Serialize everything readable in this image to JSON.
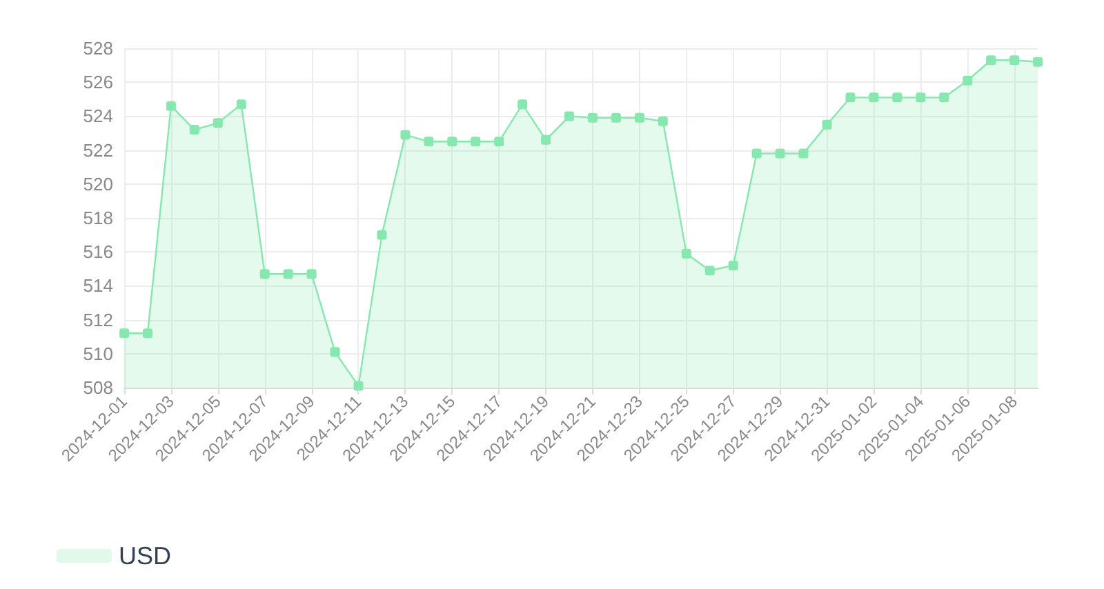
{
  "chart_data": {
    "type": "area",
    "categories": [
      "2024-12-01",
      null,
      "2024-12-03",
      null,
      "2024-12-05",
      null,
      "2024-12-07",
      null,
      "2024-12-09",
      null,
      "2024-12-11",
      null,
      "2024-12-13",
      null,
      "2024-12-15",
      null,
      "2024-12-17",
      null,
      "2024-12-19",
      null,
      "2024-12-21",
      null,
      "2024-12-23",
      null,
      "2024-12-25",
      null,
      "2024-12-27",
      null,
      "2024-12-29",
      null,
      "2024-12-31",
      null,
      "2025-01-02",
      null,
      "2025-01-04",
      null,
      "2025-01-06",
      null,
      "2025-01-08",
      null
    ],
    "series": [
      {
        "name": "USD",
        "color": "#86e8ae",
        "values": [
          511.2,
          511.2,
          524.6,
          523.2,
          523.6,
          524.7,
          514.7,
          514.7,
          514.7,
          510.1,
          508.1,
          517.0,
          522.9,
          522.5,
          522.5,
          522.5,
          522.5,
          524.7,
          522.6,
          524.0,
          523.9,
          523.9,
          523.9,
          523.7,
          515.9,
          514.9,
          515.2,
          521.8,
          521.8,
          521.8,
          523.5,
          525.1,
          525.1,
          525.1,
          525.1,
          525.1,
          526.1,
          527.3,
          527.3,
          527.2
        ]
      }
    ],
    "ylim": [
      508,
      528
    ],
    "yticks": [
      508,
      510,
      512,
      514,
      516,
      518,
      520,
      522,
      524,
      526,
      528
    ],
    "grid": true,
    "legend": "bottom left",
    "marker": "square",
    "line_style": "solid"
  }
}
